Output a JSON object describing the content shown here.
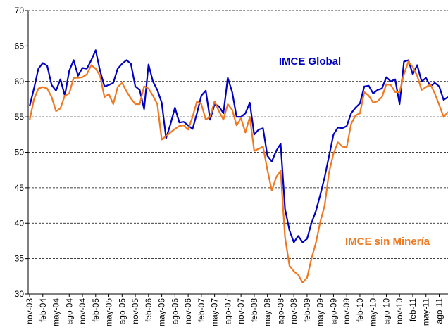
{
  "chart_data": {
    "type": "line",
    "categories": [
      "nov-03",
      null,
      null,
      "feb-04",
      null,
      null,
      "may-04",
      null,
      null,
      "ago-04",
      null,
      null,
      "nov-04",
      null,
      null,
      "feb-05",
      null,
      null,
      "may-05",
      null,
      null,
      "ago-05",
      null,
      null,
      "nov-05",
      null,
      null,
      "feb-06",
      null,
      null,
      "may-06",
      null,
      null,
      "ago-06",
      null,
      null,
      "nov-06",
      null,
      null,
      "feb-07",
      null,
      null,
      "may-07",
      null,
      null,
      "ago-07",
      null,
      null,
      "nov-07",
      null,
      null,
      "feb-08",
      null,
      null,
      "may-08",
      null,
      null,
      "ago-08",
      null,
      null,
      "nov-08",
      null,
      null,
      "feb-09",
      null,
      null,
      "may-09",
      null,
      null,
      "ago-09",
      null,
      null,
      "nov-09",
      null,
      null,
      "feb-10",
      null,
      null,
      "may-10",
      null,
      null,
      "ago-10",
      null,
      null,
      "nov-10",
      null,
      null,
      "feb-11",
      null,
      null,
      "may-11",
      null,
      null,
      "ago-11",
      null,
      null
    ],
    "series": [
      {
        "name": "IMCE Global",
        "color": "#0000c0",
        "values": [
          56.5,
          59,
          61.8,
          62.6,
          62.2,
          59.5,
          58.7,
          60.3,
          58,
          61.5,
          63,
          60.8,
          61.9,
          61.8,
          63,
          64.4,
          61.5,
          59.3,
          59.5,
          59.8,
          61.8,
          62.5,
          63,
          62.5,
          59.3,
          58.8,
          56.1,
          62.4,
          60,
          58.8,
          57,
          52,
          54,
          56.3,
          54.2,
          54.3,
          53.8,
          53.3,
          55.5,
          58,
          58.7,
          54.6,
          56.8,
          56.5,
          55.5,
          60.5,
          58.5,
          55,
          55,
          55.5,
          57,
          52.5,
          53.2,
          53.4,
          49.5,
          48.7,
          50.2,
          51.2,
          42,
          39,
          37.3,
          38.2,
          37.3,
          37.8,
          40,
          41.7,
          44,
          46.5,
          49.5,
          52.5,
          53.5,
          53.4,
          53.7,
          55.5,
          56.3,
          56.9,
          59.3,
          59.4,
          58.3,
          58.8,
          59,
          60.6,
          60,
          60.3,
          56.8,
          62.8,
          63,
          61,
          62.3,
          60,
          60.5,
          59.3,
          59.8,
          59.3,
          57.4,
          57.8
        ]
      },
      {
        "name": "IMCE sin Minería",
        "color": "#f07820",
        "values": [
          54.5,
          57.5,
          59,
          59.2,
          59,
          57.8,
          55.8,
          56.2,
          58,
          58.3,
          60.5,
          60.5,
          60.6,
          61,
          62.3,
          61.8,
          60.8,
          57.8,
          58.2,
          56.8,
          59.2,
          59.8,
          58.6,
          57.6,
          56.8,
          56.8,
          59.3,
          59,
          58,
          56.8,
          51.8,
          52.3,
          52.8,
          53.3,
          53.7,
          53.8,
          53.2,
          55,
          57.2,
          56.8,
          54.6,
          55,
          57.2,
          55.8,
          54.6,
          56.8,
          56,
          53.8,
          54.8,
          52.8,
          55,
          50.2,
          50.5,
          50.8,
          47.5,
          44.6,
          46.5,
          47.4,
          38,
          34,
          33.2,
          32.7,
          31.6,
          32.3,
          35,
          37.2,
          40.2,
          42.5,
          47.2,
          49.8,
          51.4,
          50.8,
          50.7,
          54,
          55.2,
          55.5,
          58.5,
          58,
          57,
          57.2,
          57.8,
          59.6,
          59.5,
          58.5,
          58.5,
          61,
          62.8,
          62,
          60.8,
          58.8,
          59.2,
          59.6,
          58.3,
          56.7,
          55,
          55.7
        ]
      }
    ],
    "ylim": [
      30,
      70
    ],
    "yticks": [
      30,
      35,
      40,
      45,
      50,
      55,
      60,
      65,
      70
    ],
    "grid": true
  }
}
